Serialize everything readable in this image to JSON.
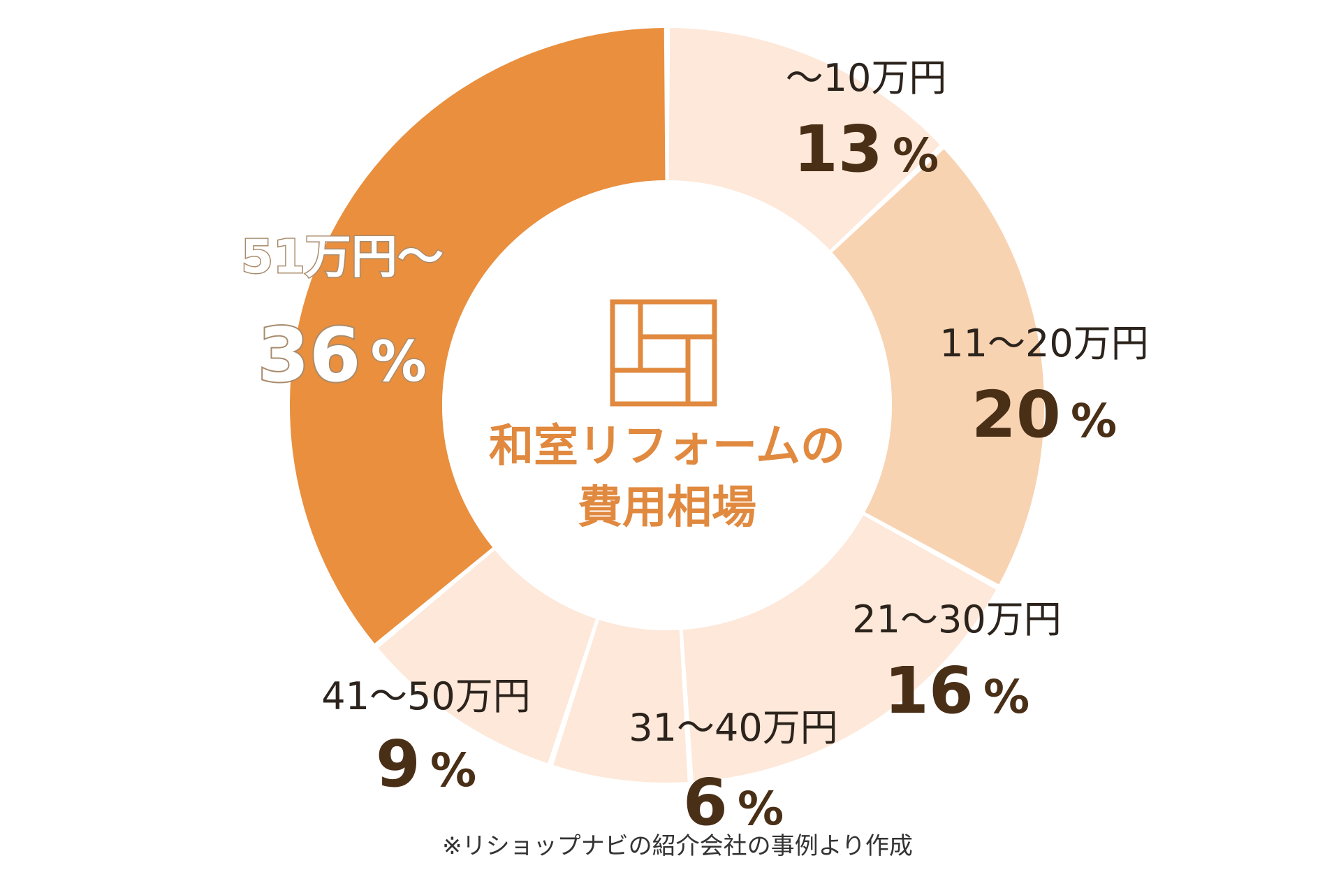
{
  "chart_data": {
    "type": "pie",
    "variant": "donut",
    "title_lines": [
      "和室リフォームの",
      "費用相場"
    ],
    "slices": [
      {
        "label": "〜10万円",
        "value": 13,
        "value_text": "13",
        "color": "#fde8d9"
      },
      {
        "label": "11〜20万円",
        "value": 20,
        "value_text": "20",
        "color": "#f8d3b2"
      },
      {
        "label": "21〜30万円",
        "value": 16,
        "value_text": "16",
        "color": "#fde8d9"
      },
      {
        "label": "31〜40万円",
        "value": 6,
        "value_text": "6",
        "color": "#fde8d9"
      },
      {
        "label": "41〜50万円",
        "value": 9,
        "value_text": "9",
        "color": "#fde8d9"
      },
      {
        "label": "51万円〜",
        "value": 36,
        "value_text": "36",
        "color": "#e98f3e"
      }
    ],
    "percent_sign": "%",
    "footnote": "※リショップナビの紹介会社の事例より作成",
    "center_icon": "tatami-icon",
    "accent_color": "#e0893f",
    "value_text_color": "#4a2f17"
  }
}
